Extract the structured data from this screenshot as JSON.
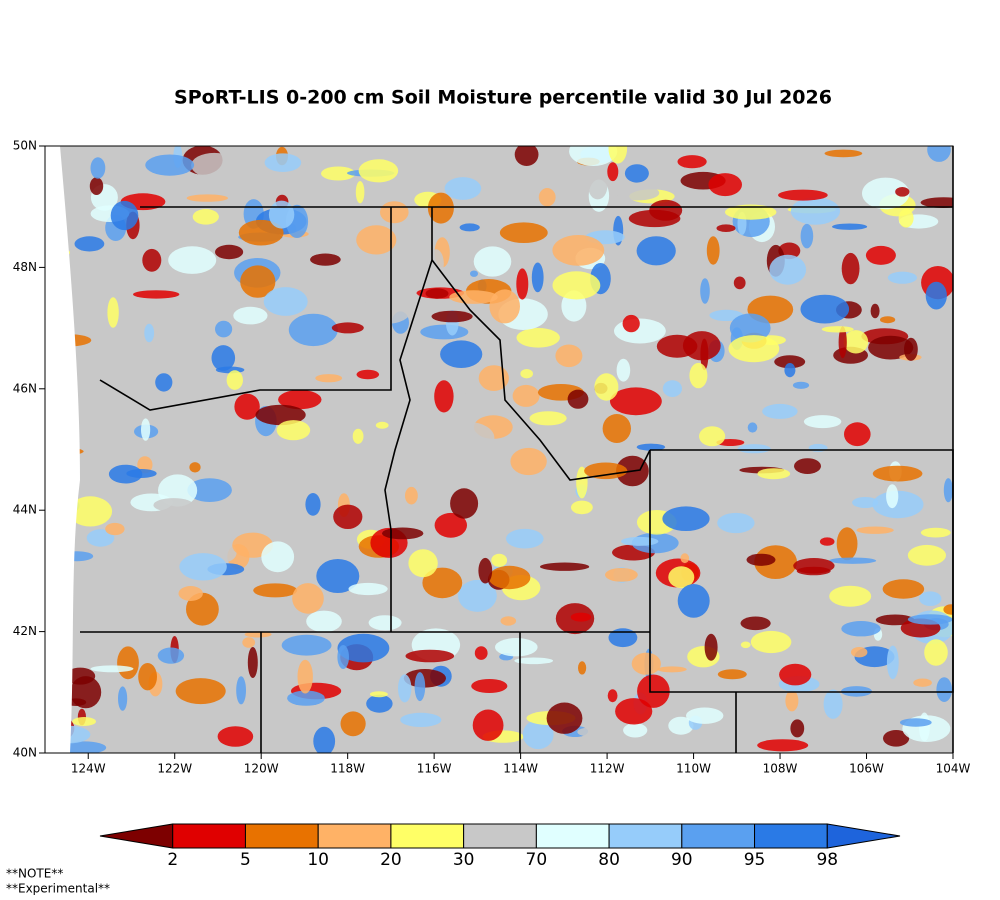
{
  "map": {
    "title": "SPoRT-LIS 0-200 cm Soil Moisture percentile valid 30 Jul 2026",
    "lon_range": [
      -125,
      -104
    ],
    "lat_range": [
      40,
      50
    ],
    "lon_ticks": [
      {
        "value": -124,
        "label": "124W"
      },
      {
        "value": -122,
        "label": "122W"
      },
      {
        "value": -120,
        "label": "120W"
      },
      {
        "value": -118,
        "label": "118W"
      },
      {
        "value": -116,
        "label": "116W"
      },
      {
        "value": -114,
        "label": "114W"
      },
      {
        "value": -112,
        "label": "112W"
      },
      {
        "value": -110,
        "label": "110W"
      },
      {
        "value": -108,
        "label": "108W"
      },
      {
        "value": -106,
        "label": "106W"
      },
      {
        "value": -104,
        "label": "104W"
      }
    ],
    "lat_ticks": [
      {
        "value": 40,
        "label": "40N"
      },
      {
        "value": 42,
        "label": "42N"
      },
      {
        "value": 44,
        "label": "44N"
      },
      {
        "value": 46,
        "label": "46N"
      },
      {
        "value": 48,
        "label": "48N"
      },
      {
        "value": 50,
        "label": "50N"
      }
    ]
  },
  "legend": {
    "colors": [
      "#7d0000",
      "#e00000",
      "#e87200",
      "#ffb266",
      "#ffff66",
      "#c8c8c8",
      "#e0ffff",
      "#96ccfa",
      "#5aa0f0",
      "#2a7ae6",
      "#1e64dc"
    ],
    "labels": [
      2,
      5,
      10,
      20,
      30,
      70,
      80,
      90,
      95,
      98
    ]
  },
  "notes": [
    "**NOTE**",
    "**Experimental**"
  ]
}
